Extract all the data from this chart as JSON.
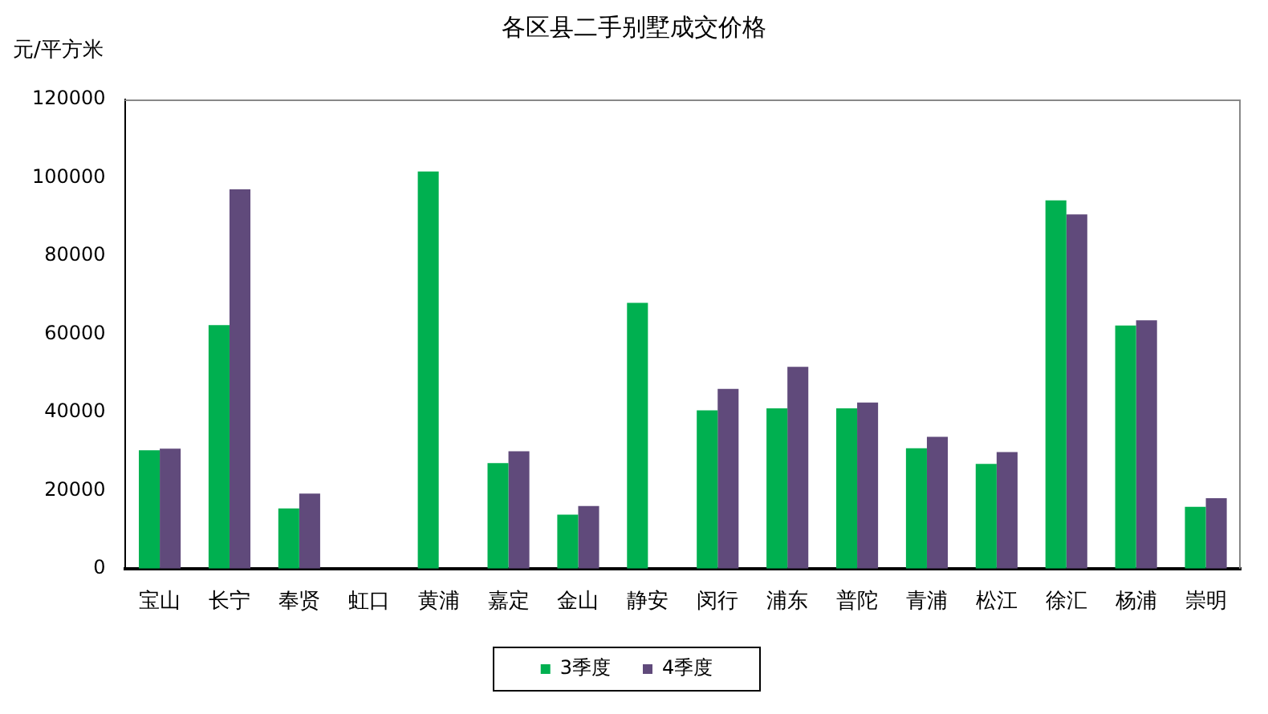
{
  "chart_data": {
    "type": "bar",
    "title": "各区县二手别墅成交价格",
    "ylabel": "元/平方米",
    "categories": [
      "宝山",
      "长宁",
      "奉贤",
      "虹口",
      "黄浦",
      "嘉定",
      "金山",
      "静安",
      "闵行",
      "浦东",
      "普陀",
      "青浦",
      "松江",
      "徐汇",
      "杨浦",
      "崇明"
    ],
    "series": [
      {
        "name": "3季度",
        "color": "#00b050",
        "values": [
          30300,
          62300,
          15400,
          null,
          101600,
          27000,
          13800,
          68000,
          40500,
          41000,
          41000,
          30800,
          26800,
          94200,
          62200,
          15800
        ]
      },
      {
        "name": "4季度",
        "color": "#604a7b",
        "values": [
          30700,
          97000,
          19200,
          null,
          null,
          30000,
          16000,
          null,
          46000,
          51600,
          42500,
          33700,
          29800,
          90600,
          63500,
          18000
        ]
      }
    ],
    "ylim": [
      0,
      120000
    ],
    "yticks": [
      0,
      20000,
      40000,
      60000,
      80000,
      100000,
      120000
    ],
    "grid": false,
    "legend": "bottom"
  }
}
